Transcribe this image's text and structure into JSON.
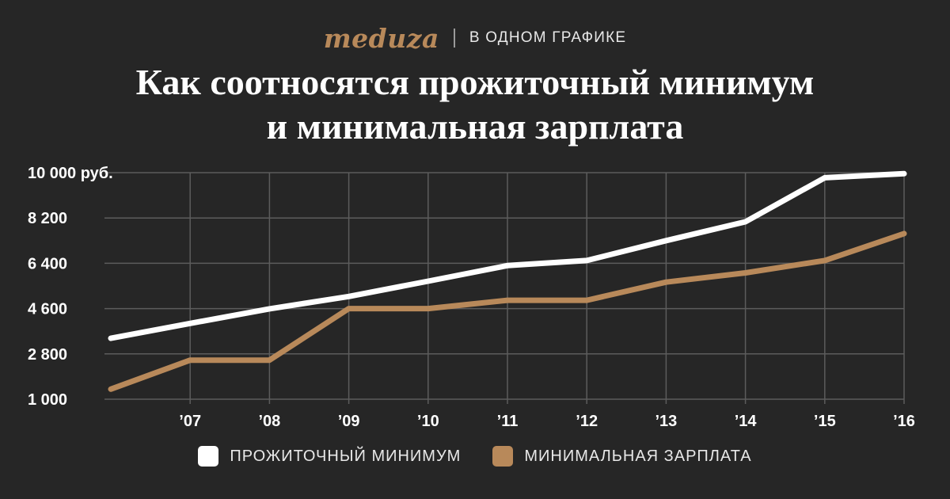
{
  "header": {
    "logo_text": "meduza",
    "section_label": "В ОДНОМ ГРАФИКЕ",
    "title_line1": "Как соотносятся прожиточный минимум",
    "title_line2": "и минимальная зарплата"
  },
  "colors": {
    "background": "#262626",
    "grid": "#5c5c5c",
    "series_living_wage": "#ffffff",
    "series_minimum_wage": "#b8895a",
    "brand": "#b8895a"
  },
  "chart_data": {
    "type": "line",
    "title": "Как соотносятся прожиточный минимум и минимальная зарплата",
    "x": [
      2006,
      2007,
      2008,
      2009,
      2010,
      2011,
      2012,
      2013,
      2014,
      2015,
      2016
    ],
    "x_tick_labels": [
      "’07",
      "’08",
      "’09",
      "’10",
      "’11",
      "’12",
      "’13",
      "’14",
      "’15",
      "’16"
    ],
    "y_tick_labels": [
      "1 000",
      "2 800",
      "4 600",
      "6 400",
      "8 200",
      "10 000 руб."
    ],
    "y_ticks": [
      1000,
      2800,
      4600,
      6400,
      8200,
      10000
    ],
    "ylim": [
      1000,
      10000
    ],
    "xlim": [
      2006,
      2016
    ],
    "xlabel": "",
    "ylabel": "",
    "grid": true,
    "legend_position": "bottom",
    "series": [
      {
        "name": "ПРОЖИТОЧНЫЙ МИНИМУМ",
        "color": "#ffffff",
        "values": [
          3420,
          4010,
          4590,
          5080,
          5690,
          6310,
          6510,
          7300,
          8050,
          9800,
          9960
        ]
      },
      {
        "name": "МИНИМАЛЬНАЯ ЗАРПЛАТА",
        "color": "#b8895a",
        "values": [
          1400,
          2550,
          2550,
          4600,
          4600,
          4930,
          4930,
          5650,
          6020,
          6510,
          7580
        ]
      }
    ]
  }
}
